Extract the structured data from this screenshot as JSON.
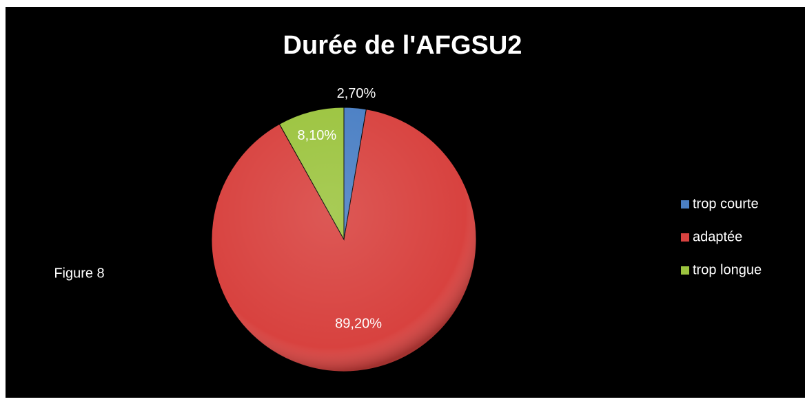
{
  "chart_data": {
    "type": "pie",
    "title": "Durée de l'AFGSU2",
    "annotation": "Figure 8",
    "categories": [
      "trop courte",
      "adaptée",
      "trop longue"
    ],
    "values": [
      2.7,
      89.2,
      8.1
    ],
    "value_labels": [
      "2,70%",
      "89,20%",
      "8,10%"
    ],
    "colors": [
      "#4a7fc4",
      "#d8423f",
      "#9cc43f"
    ],
    "legend": "right"
  }
}
